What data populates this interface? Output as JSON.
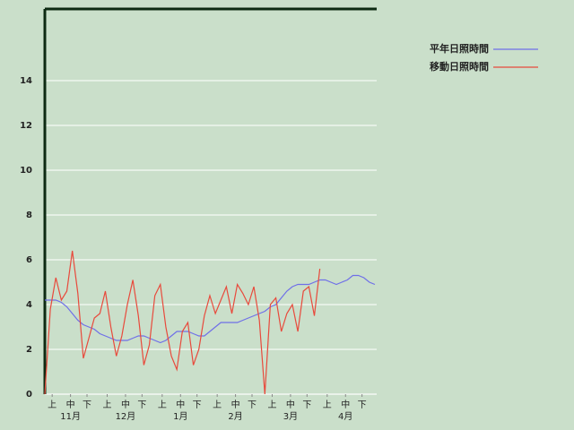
{
  "chart_data": {
    "type": "line",
    "x": [
      0,
      3,
      6,
      9,
      12,
      15,
      18,
      21,
      24,
      27,
      30,
      33,
      36,
      39,
      42,
      45,
      48,
      51,
      54,
      57,
      60,
      63,
      66,
      69,
      72,
      75,
      78,
      81,
      84,
      87,
      90,
      93,
      96,
      99,
      102,
      105,
      108,
      111,
      114,
      117,
      120,
      123,
      126,
      129,
      132,
      135,
      138,
      141,
      144,
      147,
      150,
      153,
      156,
      159,
      162,
      165,
      168,
      171,
      174,
      177,
      180
    ],
    "series": [
      {
        "name": "平年日照時間",
        "color": "#6f6fe8",
        "values": [
          4.2,
          4.2,
          4.2,
          4.1,
          3.9,
          3.6,
          3.3,
          3.1,
          3.0,
          2.9,
          2.7,
          2.6,
          2.5,
          2.4,
          2.4,
          2.4,
          2.5,
          2.6,
          2.6,
          2.5,
          2.4,
          2.3,
          2.4,
          2.6,
          2.8,
          2.8,
          2.8,
          2.7,
          2.6,
          2.6,
          2.8,
          3.0,
          3.2,
          3.2,
          3.2,
          3.2,
          3.3,
          3.4,
          3.5,
          3.6,
          3.7,
          3.9,
          4.0,
          4.3,
          4.6,
          4.8,
          4.9,
          4.9,
          4.9,
          5.0,
          5.1,
          5.1,
          5.0,
          4.9,
          5.0,
          5.1,
          5.3,
          5.3,
          5.2,
          5.0,
          4.9
        ]
      },
      {
        "name": "移動日照時間",
        "color": "#e84a3c",
        "values": [
          0,
          3.8,
          5.2,
          4.2,
          4.6,
          6.4,
          4.5,
          1.6,
          2.5,
          3.4,
          3.6,
          4.6,
          3.0,
          1.7,
          2.6,
          4.0,
          5.1,
          3.5,
          1.3,
          2.2,
          4.4,
          4.9,
          3.0,
          1.7,
          1.1,
          2.8,
          3.2,
          1.3,
          2.0,
          3.5,
          4.4,
          3.6,
          4.2,
          4.8,
          3.6,
          4.9,
          4.5,
          4.0,
          4.8,
          3.3,
          0,
          4.0,
          4.3,
          2.8,
          3.6,
          4.0,
          2.8,
          4.6,
          4.8,
          3.5,
          5.6,
          null,
          null,
          null,
          null,
          null,
          null,
          null,
          null,
          null,
          null
        ]
      }
    ],
    "xlim": [
      0,
      181
    ],
    "xticks": [
      {
        "value": 4,
        "label": "上"
      },
      {
        "value": 14,
        "label": "中"
      },
      {
        "value": 23,
        "label": "下"
      },
      {
        "value": 34,
        "label": "上"
      },
      {
        "value": 44,
        "label": "中"
      },
      {
        "value": 53,
        "label": "下"
      },
      {
        "value": 64,
        "label": "上"
      },
      {
        "value": 74,
        "label": "中"
      },
      {
        "value": 83,
        "label": "下"
      },
      {
        "value": 94,
        "label": "上"
      },
      {
        "value": 104,
        "label": "中"
      },
      {
        "value": 113,
        "label": "下"
      },
      {
        "value": 124,
        "label": "上"
      },
      {
        "value": 134,
        "label": "中"
      },
      {
        "value": 143,
        "label": "下"
      },
      {
        "value": 154,
        "label": "上"
      },
      {
        "value": 164,
        "label": "中"
      },
      {
        "value": 173,
        "label": "下"
      }
    ],
    "month_labels": [
      {
        "value": 14,
        "label": "11月"
      },
      {
        "value": 44,
        "label": "12月"
      },
      {
        "value": 74,
        "label": "1月"
      },
      {
        "value": 104,
        "label": "2月"
      },
      {
        "value": 134,
        "label": "3月"
      },
      {
        "value": 164,
        "label": "4月"
      }
    ],
    "ylim": [
      0,
      17.2
    ],
    "yticks": [
      0,
      2,
      4,
      6,
      8,
      10,
      12,
      14
    ],
    "grid": true
  }
}
